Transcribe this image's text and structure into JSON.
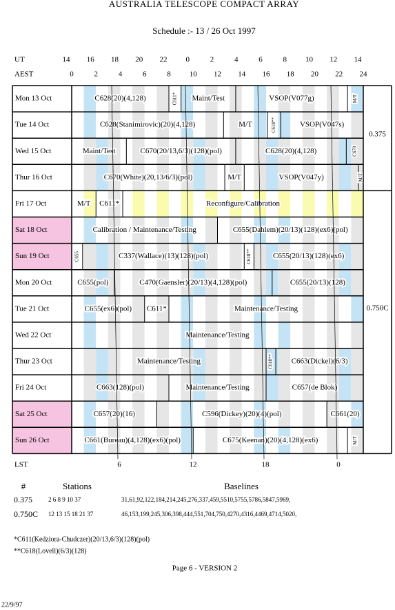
{
  "header": {
    "title": "AUSTRALIA TELESCOPE COMPACT ARRAY",
    "subtitle": "Schedule :- 13 / 26 Oct 1997"
  },
  "time_axes": {
    "ut_label": "UT",
    "ut": [
      "14",
      "16",
      "18",
      "20",
      "22",
      "0",
      "2",
      "4",
      "6",
      "8",
      "10",
      "12",
      "14"
    ],
    "aest_label": "AEST",
    "aest": [
      "0",
      "2",
      "4",
      "6",
      "8",
      "10",
      "12",
      "14",
      "16",
      "18",
      "20",
      "22",
      "24"
    ],
    "lst_label": "LST",
    "lst": [
      "6",
      "12",
      "18",
      "0"
    ]
  },
  "schedule": {
    "rows": [
      {
        "day": "Mon 13 Oct",
        "cells": [
          "C628(20)(4,128)",
          "C611*",
          "Maint/Test",
          "VSOP(V077g)",
          "M/T"
        ]
      },
      {
        "day": "Tue 14 Oct",
        "cells": [
          "C628(Stanimirovic)(20)(4,128)",
          "M/T",
          "C618**",
          "VSOP(V047s)"
        ]
      },
      {
        "day": "Wed 15 Oct",
        "cells": [
          "Maint/Test",
          "C670(20/13,6/3)(128)(pol)",
          "C628(20)(4,128)",
          "C670"
        ]
      },
      {
        "day": "Thur 16 Oct",
        "cells": [
          "C670(White)(20,13/6/3)(pol)",
          "M/T",
          "VSOP(V047y)",
          "M/T"
        ]
      },
      {
        "day": "Fri 17 Oct",
        "cells": [
          "M/T",
          "C611*",
          "Reconfigure/Calibration"
        ]
      },
      {
        "day": "Sat 18 Oct",
        "cells": [
          "Calibration / Maintenance/Testing",
          "C655(Dahlem)(20/13)(128)(ex6)(pol)"
        ]
      },
      {
        "day": "Sun 19 Oct",
        "cells": [
          "C655",
          "C337(Wallace)(13)(128)(pol)",
          "C618**",
          "C655(20/13)(128)(ex6)"
        ]
      },
      {
        "day": "Mon 20 Oct",
        "cells": [
          "C655(pol)",
          "C470(Gaensler)(20/13)(4,128)(pol)",
          "C655(20/13)(128)"
        ]
      },
      {
        "day": "Tue 21 Oct",
        "cells": [
          "C655(ex6)(pol)",
          "C611*",
          "Maintenance/Testing"
        ]
      },
      {
        "day": "Wed 22 Oct",
        "cells": [
          "Maintenance/Testing"
        ]
      },
      {
        "day": "Thur 23 Oct",
        "cells": [
          "Maintenance/Testing",
          "C618**",
          "C663(Dickel)(6/3)"
        ]
      },
      {
        "day": "Fri 24 Oct",
        "cells": [
          "C663(128)(pol)",
          "Maintenance/Testing",
          "C657(de Blok)"
        ]
      },
      {
        "day": "Sat 25 Oct",
        "cells": [
          "C657(20)(16)",
          "C596(Dickey)(20)(4)(pol)",
          "C661(20)"
        ]
      },
      {
        "day": "Sun 26 Oct",
        "cells": [
          "C661(Bureau)(4,128)(ex6)(pol)",
          "C675(Keenan)(20)(4,128)(ex6)",
          "M/T"
        ]
      }
    ],
    "configs": [
      "0.375",
      "0.750C"
    ]
  },
  "config_table": {
    "headers": [
      "#",
      "Stations",
      "Baselines"
    ],
    "rows": [
      [
        "0.375",
        "2 6 8 9 10 37",
        "31,61,92,122,184,214,245,276,337,459,5510,5755,5786,5847,5969,"
      ],
      [
        "0.750C",
        "12 13 15 18 21 37",
        "46,153,199,245,306,398,444,551,704,750,4270,4316,4469,4714,5020,"
      ]
    ]
  },
  "footnotes": [
    "*C611(Kedziora-Chudczer)(20/13,6/3)(128)(pol)",
    "**C618(Lovell)(6/3)(128)"
  ],
  "footer": {
    "page": "Page 6 - VERSION 2",
    "date": "22/9/97"
  }
}
